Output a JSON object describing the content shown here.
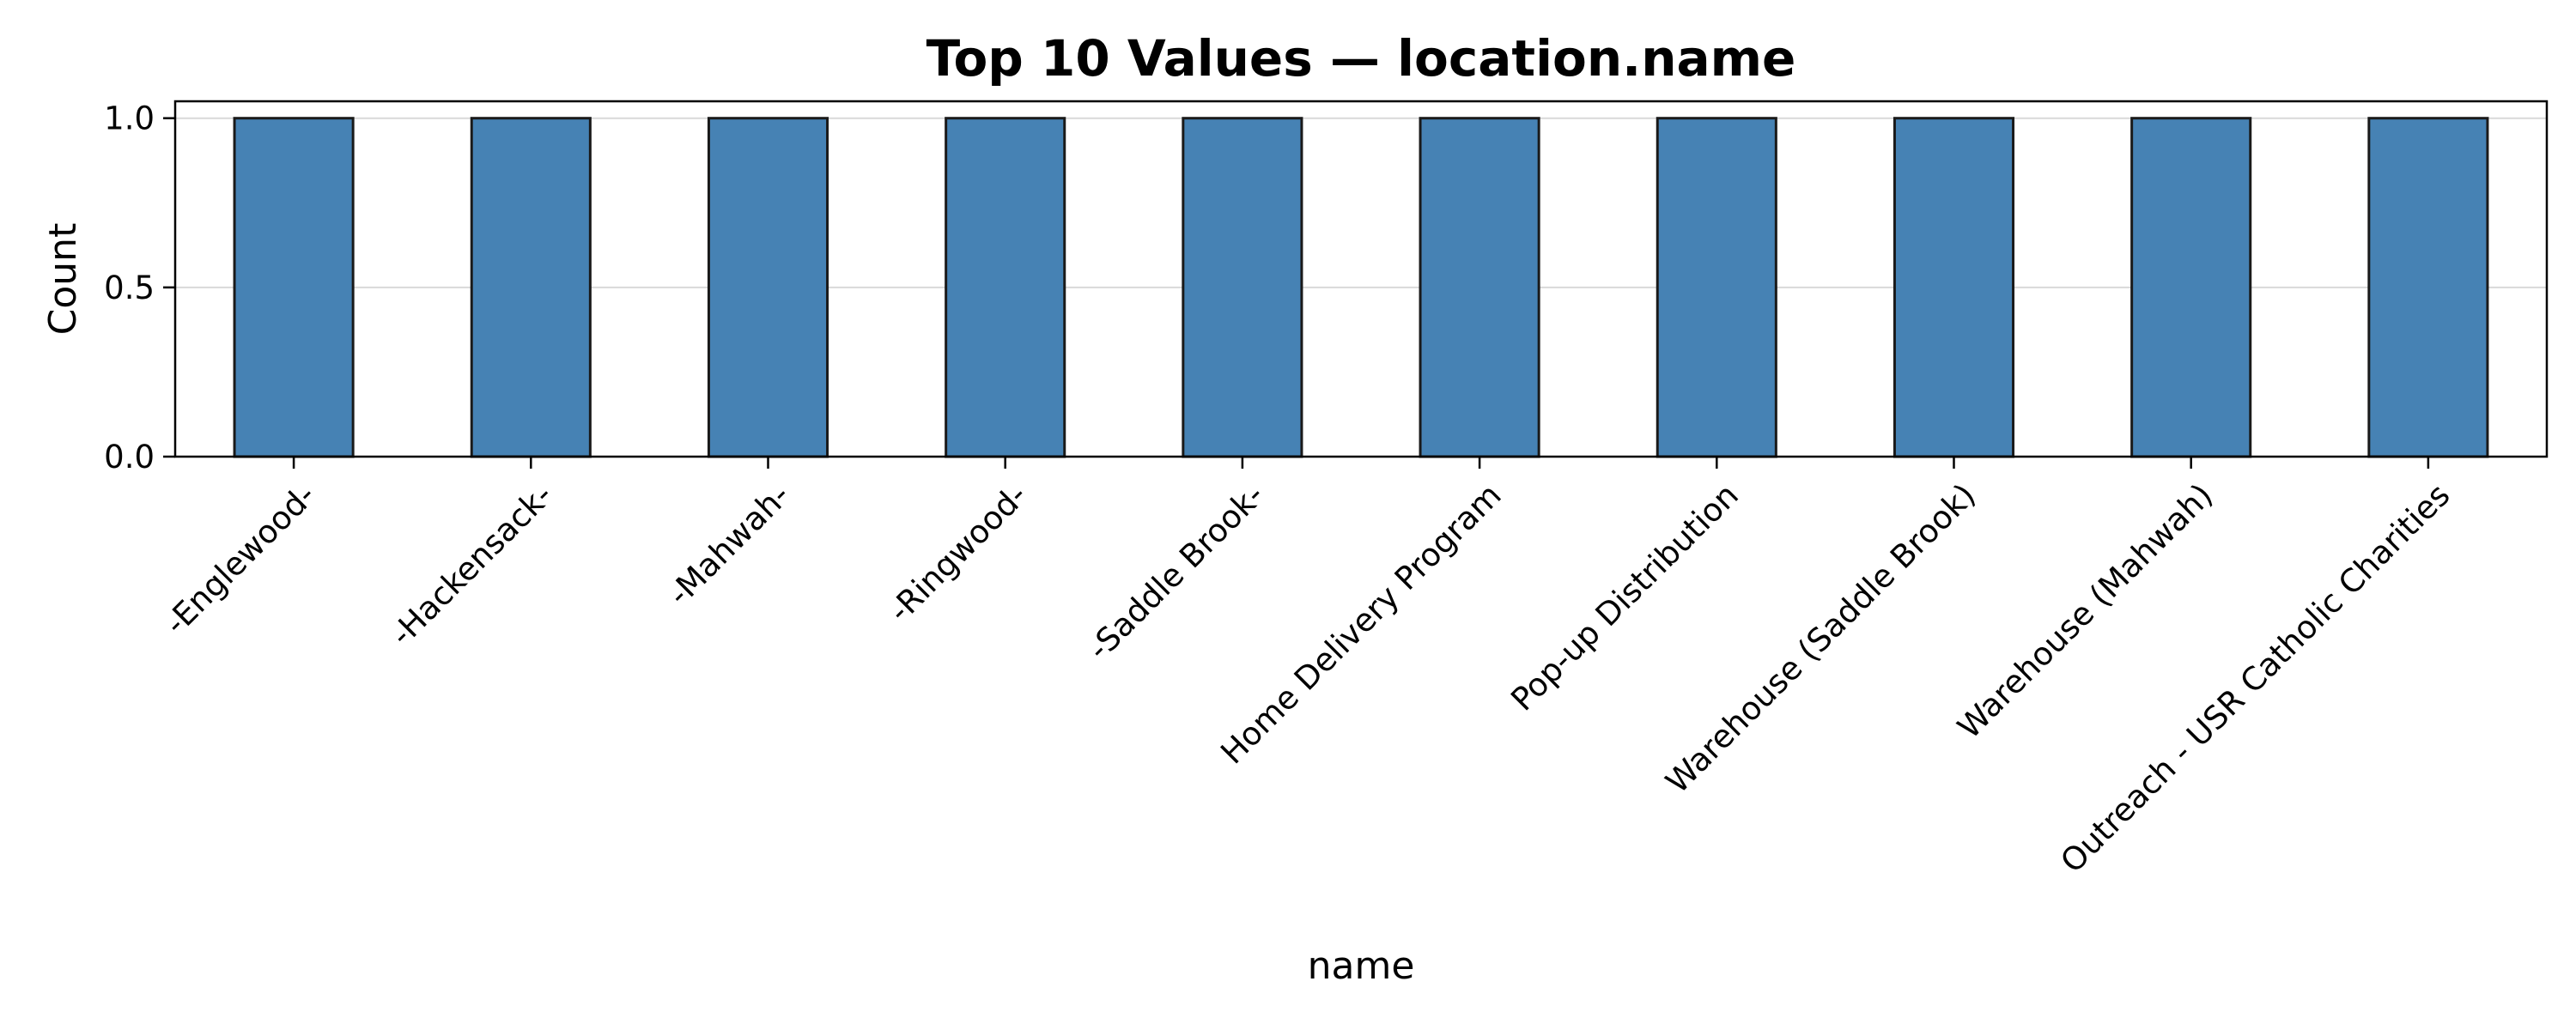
{
  "chart_data": {
    "type": "bar",
    "title": "Top 10 Values — location.name",
    "xlabel": "name",
    "ylabel": "Count",
    "categories": [
      "-Englewood-",
      "-Hackensack-",
      "-Mahwah-",
      "-Ringwood-",
      "-Saddle Brook-",
      "Home Delivery Program",
      "Pop-up Distribution",
      "Warehouse (Saddle Brook)",
      "Warehouse (Mahwah)",
      "Outreach - USR Catholic Charities"
    ],
    "values": [
      1,
      1,
      1,
      1,
      1,
      1,
      1,
      1,
      1,
      1
    ],
    "ylim": [
      0,
      1.05
    ],
    "yticks": [
      0.0,
      0.5,
      1.0
    ],
    "ytick_labels": [
      "0.0",
      "0.5",
      "1.0"
    ],
    "grid": "y",
    "bar_color": "#4682b4",
    "bar_edge_color": "#1a1a1a"
  }
}
